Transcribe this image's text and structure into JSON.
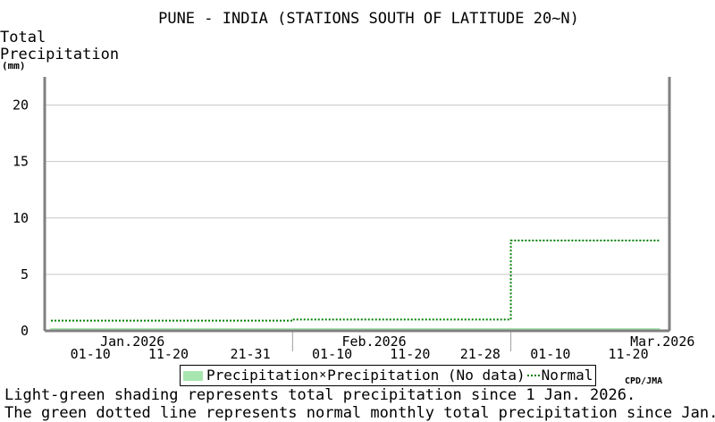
{
  "header": {
    "title": "PUNE - INDIA (STATIONS SOUTH OF LATITUDE 20~N)",
    "y_label_line1": "Total",
    "y_label_line2": "Precipitation",
    "y_unit": "(mm)"
  },
  "legend": {
    "precip": "Precipitation",
    "nodata": "Precipitation (No data)",
    "normal": "Normal"
  },
  "credit": "CPD/JMA",
  "notes": {
    "line1": "Light-green shading represents total precipitation since 1 Jan. 2026.",
    "line2": "The green dotted line represents normal monthly total precipitation since Jan."
  },
  "colors": {
    "precip_fill": "#a8e6b0",
    "normal_line": "#008000",
    "grid": "#c8c8c8",
    "frame": "#808080"
  },
  "chart_data": {
    "type": "area",
    "title": "PUNE - INDIA (STATIONS SOUTH OF LATITUDE 20~N)",
    "ylabel": "Total Precipitation (mm)",
    "ylim": [
      0,
      22.5
    ],
    "yticks": [
      0,
      5,
      10,
      15,
      20
    ],
    "grid": true,
    "legend_position": "bottom",
    "x_period_labels": [
      {
        "label": "01-10",
        "start": "2026-01-01",
        "end": "2026-01-10"
      },
      {
        "label": "11-20",
        "start": "2026-01-11",
        "end": "2026-01-20"
      },
      {
        "label": "21-31",
        "start": "2026-01-21",
        "end": "2026-01-31"
      },
      {
        "label": "01-10",
        "start": "2026-02-01",
        "end": "2026-02-10"
      },
      {
        "label": "11-20",
        "start": "2026-02-11",
        "end": "2026-02-20"
      },
      {
        "label": "21-28",
        "start": "2026-02-21",
        "end": "2026-02-28"
      },
      {
        "label": "01-10",
        "start": "2026-03-01",
        "end": "2026-03-10"
      },
      {
        "label": "11-20",
        "start": "2026-03-11",
        "end": "2026-03-20"
      }
    ],
    "x_month_labels": [
      {
        "label": "Jan.2026",
        "date": "2026-01-11"
      },
      {
        "label": "Feb.2026",
        "date": "2026-02-11"
      },
      {
        "label": "Mar.2026",
        "date": "2026-03-20"
      }
    ],
    "month_boundaries": [
      "2026-02-01",
      "2026-03-01"
    ],
    "x_range": [
      "2026-01-01",
      "2026-03-21"
    ],
    "series": [
      {
        "name": "Precipitation",
        "style": "area",
        "points": [
          {
            "x": "2026-01-01",
            "y": 0
          },
          {
            "x": "2026-03-20",
            "y": 0
          }
        ]
      },
      {
        "name": "Normal",
        "style": "dotted-step",
        "points": [
          {
            "x": "2026-01-01",
            "y": 0.9
          },
          {
            "x": "2026-01-31",
            "y": 0.9
          },
          {
            "x": "2026-02-01",
            "y": 1.0
          },
          {
            "x": "2026-02-28",
            "y": 1.0
          },
          {
            "x": "2026-03-01",
            "y": 8.0
          },
          {
            "x": "2026-03-20",
            "y": 8.0
          }
        ]
      }
    ]
  }
}
